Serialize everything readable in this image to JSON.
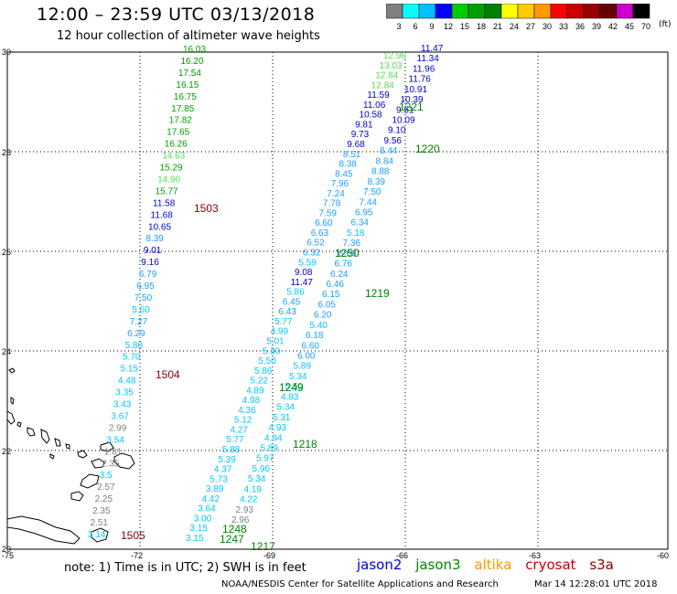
{
  "title": "12:00 – 23:59 UTC 03/13/2018",
  "subtitle": "12 hour collection of altimeter wave heights",
  "note": "note:  1) Time is in UTC;  2) SWH is in feet",
  "credit": "NOAA/NESDIS Center for Satellite Applications and Research",
  "timestamp": "Mar 14 12:28:01 UTC 2018",
  "legend_satellites": [
    "jason2",
    "jason3",
    "altika",
    "cryosat",
    "s3a"
  ],
  "scale": {
    "unit": "(ft)",
    "labels": [
      "3",
      "6",
      "9",
      "12",
      "15",
      "18",
      "21",
      "24",
      "27",
      "30",
      "33",
      "36",
      "39",
      "42",
      "45",
      "70"
    ],
    "colors": [
      "#808080",
      "#00ffff",
      "#00bfff",
      "#0000ff",
      "#00cc00",
      "#00a000",
      "#008000",
      "#ffff00",
      "#ffcc00",
      "#ff9900",
      "#ff0000",
      "#cc0000",
      "#990000",
      "#660000",
      "#cc00cc",
      "#000000"
    ]
  },
  "axes": {
    "lat_ticks": [
      "20",
      "22",
      "24",
      "26",
      "28",
      "30"
    ],
    "lon_ticks": [
      "-75",
      "-72",
      "-69",
      "-66",
      "-63",
      "-60"
    ]
  },
  "passes": [
    {
      "label": "1503",
      "color": "#880000"
    },
    {
      "label": "1504",
      "color": "#880000"
    },
    {
      "label": "1505",
      "color": "#880000"
    },
    {
      "label": "1220",
      "color": "#008000"
    },
    {
      "label": "1250",
      "color": "#008000"
    },
    {
      "label": "1219",
      "color": "#008000"
    },
    {
      "label": "1249",
      "color": "#008000"
    },
    {
      "label": "1218",
      "color": "#008000"
    },
    {
      "label": "1248",
      "color": "#008000"
    },
    {
      "label": "1247",
      "color": "#008000"
    },
    {
      "label": "1217",
      "color": "#008000"
    },
    {
      "label": "1221",
      "color": "#008000"
    }
  ],
  "tracks": [
    {
      "name": "s3a-track",
      "values": [
        "16.03",
        "16.20",
        "17.54",
        "16.15",
        "16.75",
        "17.85",
        "17.82",
        "17.65",
        "16.26",
        "14.63",
        "15.29",
        "14.90",
        "15.77",
        "11.58",
        "11.68",
        "10.65",
        "8.39",
        "9.01",
        "9.16",
        "6.79",
        "6.95",
        "7.50",
        "5.60",
        "7.27",
        "6.29",
        "5.80",
        "5.70",
        "5.15",
        "4.48",
        "3.35",
        "3.43",
        "3.67",
        "2.99",
        "3.54",
        "1.81",
        "2.35",
        "3.5",
        "2.57",
        "2.25",
        "2.35",
        "2.51",
        "3.14"
      ]
    },
    {
      "name": "jason-track-east",
      "values": [
        "11.47",
        "11.34",
        "11.96",
        "11.76",
        "10.91",
        "10.39",
        "9.51",
        "10.09",
        "9.10",
        "9.56",
        "8.44",
        "8.84",
        "8.88",
        "8.39",
        "7.50",
        "7.44",
        "6.95",
        "6.34",
        "5.18",
        "7.36",
        "6.66",
        "6.76",
        "6.24",
        "6.46",
        "6.15",
        "6.05",
        "6.20",
        "5.40",
        "6.18",
        "6.60",
        "6.00",
        "5.89",
        "5.34",
        "5.50",
        "4.83",
        "5.34",
        "5.31",
        "4.93",
        "4.94",
        "5.89",
        "5.97",
        "5.96",
        "5.34",
        "4.19",
        "4.22",
        "2.93",
        "2.96"
      ]
    },
    {
      "name": "jason-track-mid",
      "values": [
        "12.96",
        "13.03",
        "12.84",
        "12.84",
        "11.59",
        "11.06",
        "10.58",
        "9.81",
        "9.73",
        "9.68",
        "8.51",
        "8.38",
        "8.45",
        "7.96",
        "7.24",
        "7.78",
        "7.59",
        "6.60",
        "6.63",
        "6.52",
        "6.32",
        "5.59",
        "9.08",
        "11.47",
        "5.86",
        "6.45",
        "6.43",
        "5.77",
        "4.99",
        "5.01",
        "5.30",
        "5.50",
        "5.86",
        "5.22",
        "4.89",
        "4.98",
        "4.36",
        "5.12",
        "4.27",
        "5.77",
        "5.88",
        "5.39",
        "4.37",
        "5.73",
        "3.89",
        "4.42",
        "3.64",
        "3.00",
        "3.15",
        "3.15"
      ]
    }
  ]
}
